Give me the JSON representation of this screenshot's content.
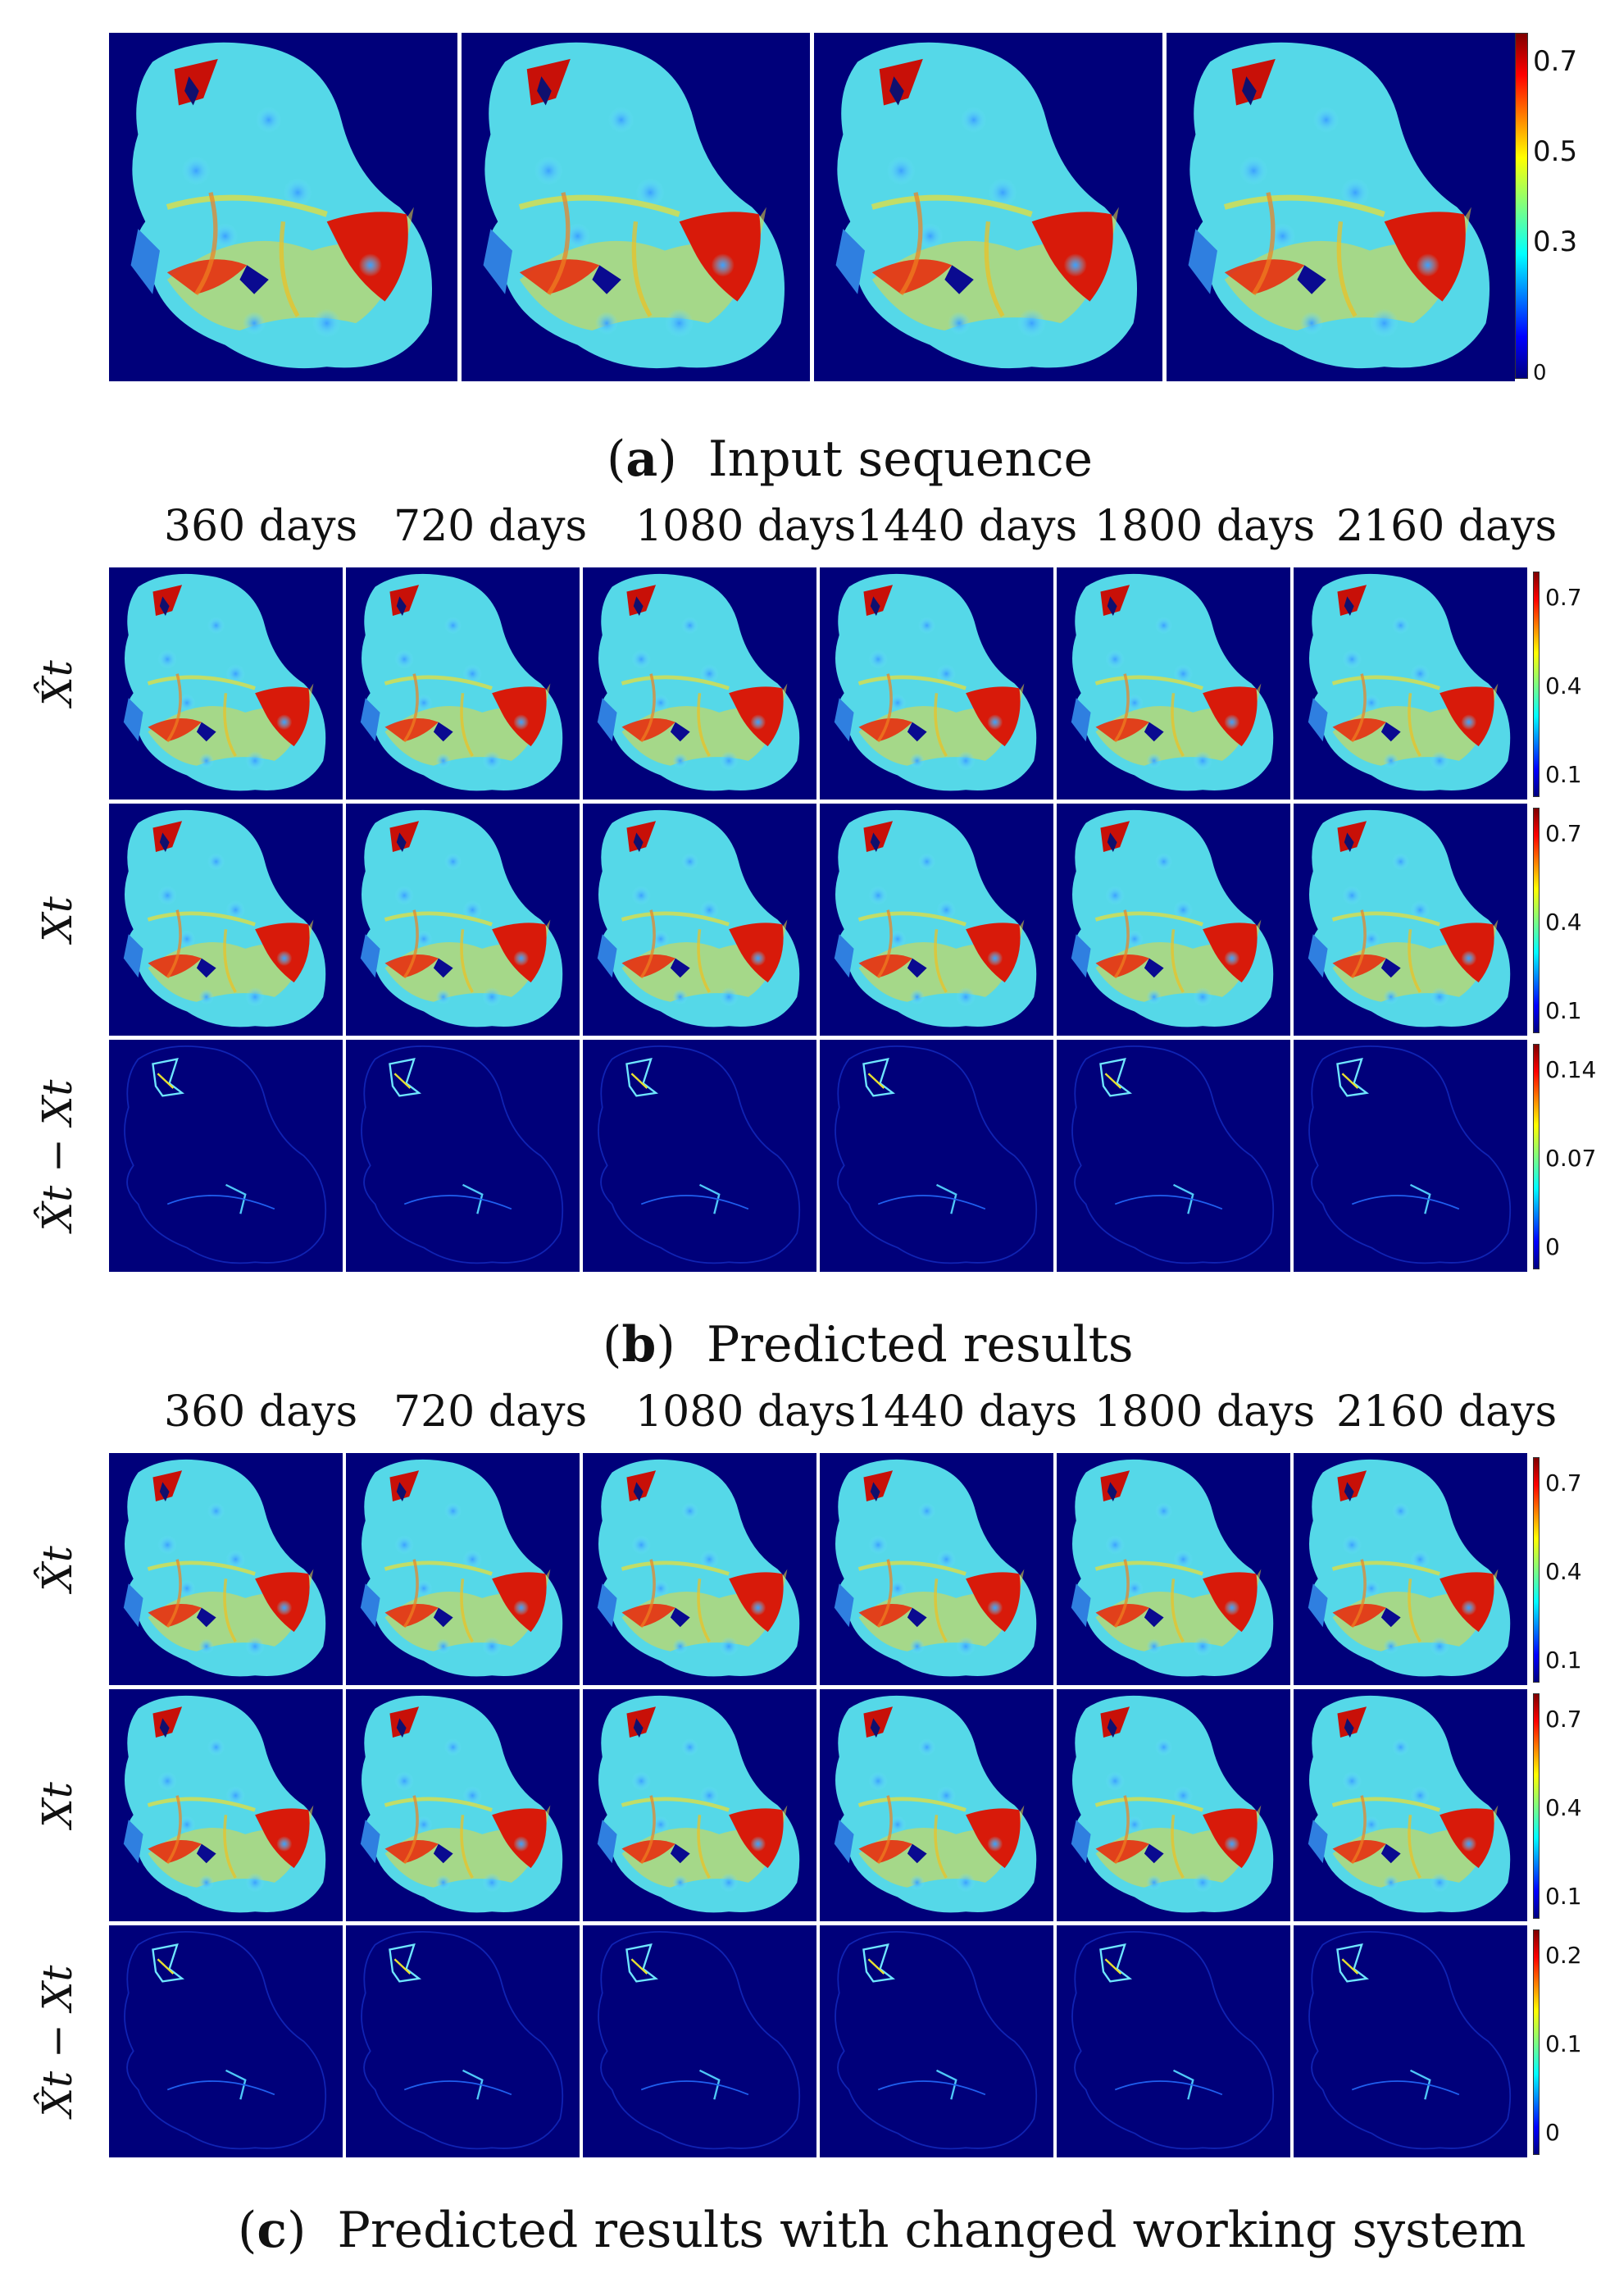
{
  "section_a": {
    "caption_letter": "a",
    "caption_text": "Input sequence",
    "colorbar_ticks": [
      "0.7",
      "0.5",
      "0.3",
      "0"
    ]
  },
  "section_b": {
    "caption_letter": "b",
    "caption_text": "Predicted results",
    "columns": [
      "360 days",
      "720 days",
      "1080 days",
      "1440 days",
      "1800 days",
      "2160 days"
    ],
    "rows": [
      {
        "label": "X̂t",
        "ticks": [
          "0.7",
          "0.4",
          "0.1"
        ]
      },
      {
        "label": "Xt",
        "ticks": [
          "0.7",
          "0.4",
          "0.1"
        ]
      },
      {
        "label": "X̂t − Xt",
        "ticks": [
          "0.14",
          "0.07",
          "0"
        ]
      }
    ]
  },
  "section_c": {
    "caption_letter": "c",
    "caption_text": "Predicted results with changed working system",
    "columns": [
      "360 days",
      "720 days",
      "1080 days",
      "1440 days",
      "1800 days",
      "2160 days"
    ],
    "rows": [
      {
        "label": "X̂t",
        "ticks": [
          "0.7",
          "0.4",
          "0.1"
        ]
      },
      {
        "label": "Xt",
        "ticks": [
          "0.7",
          "0.4",
          "0.1"
        ]
      },
      {
        "label": "X̂t − Xt",
        "ticks": [
          "0.2",
          "0.1",
          "0"
        ]
      }
    ]
  }
}
